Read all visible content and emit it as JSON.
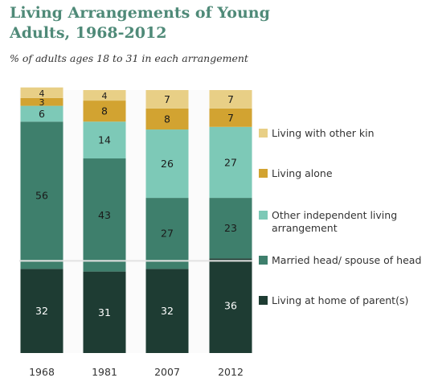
{
  "title": "Living Arrangements of Young Adults, 1968-2012",
  "subtitle": "% of adults ages 18 to 31 in each arrangement",
  "colors": {
    "other_kin": "#e8cf86",
    "alone": "#d2a331",
    "independent": "#7dc9b7",
    "married": "#3e7f6c",
    "parents": "#1e3c33",
    "baseline": "#e3e3e3"
  },
  "chart_data": {
    "type": "bar",
    "stacked": true,
    "categories": [
      "1968",
      "1981",
      "2007",
      "2012"
    ],
    "ylim": [
      0,
      100
    ],
    "series": [
      {
        "name": "Living at home of parent(s)",
        "key": "parents",
        "values": [
          32,
          31,
          32,
          36
        ],
        "label_color": "#ffffff"
      },
      {
        "name": "Married head/ spouse of head",
        "key": "married",
        "values": [
          56,
          43,
          27,
          23
        ],
        "label_color": "#1a1a1a"
      },
      {
        "name": "Other independent living arrangement",
        "key": "independent",
        "values": [
          6,
          14,
          26,
          27
        ],
        "label_color": "#1a1a1a"
      },
      {
        "name": "Living alone",
        "key": "alone",
        "values": [
          3,
          8,
          8,
          7
        ],
        "label_color": "#1a1a1a"
      },
      {
        "name": "Living with other kin",
        "key": "other_kin",
        "values": [
          4,
          4,
          7,
          7
        ],
        "label_color": "#1a1a1a"
      }
    ],
    "legend_order": [
      "other_kin",
      "alone",
      "independent",
      "married",
      "parents"
    ],
    "legend_labels": {
      "other_kin": "Living with other kin",
      "alone": "Living alone",
      "independent": "Other independent living arrangement",
      "married": "Married head/ spouse of head",
      "parents": "Living at home of parent(s)"
    }
  }
}
